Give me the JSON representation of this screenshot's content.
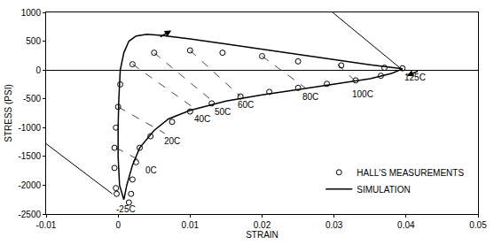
{
  "chart_data": {
    "type": "scatter",
    "xlabel": "STRAIN",
    "ylabel": "STRESS (PSI)",
    "xlim": [
      -0.01,
      0.05
    ],
    "xticks": [
      -0.01,
      0,
      0.01,
      0.02,
      0.03,
      0.04,
      0.05
    ],
    "ylim": [
      -2500,
      1000
    ],
    "yticks": [
      -2500,
      -2000,
      -1500,
      -1000,
      -500,
      0,
      500,
      1000
    ],
    "grid": false,
    "legend": "lower right",
    "series": [
      {
        "name": "HALL'S MEASUREMENTS",
        "type": "scatter",
        "marker": "open circle",
        "color": "#000000",
        "x": [
          -0.0005,
          -0.0005,
          -0.0003,
          -0.0003,
          -0.0002,
          0,
          0.0003,
          0.002,
          0.005,
          0.01,
          0.0145,
          0.02,
          0.025,
          0.031,
          0.037,
          0.0395,
          0.0365,
          0.033,
          0.029,
          0.025,
          0.021,
          0.017,
          0.013,
          0.01,
          0.0075,
          0.0045,
          0.003,
          0.0025,
          0.002,
          0.0018,
          0.0015
        ],
        "y": [
          -1700,
          -1350,
          -1000,
          -2050,
          -2150,
          -640,
          -250,
          100,
          300,
          340,
          300,
          240,
          150,
          80,
          40,
          30,
          -100,
          -180,
          -240,
          -310,
          -380,
          -460,
          -580,
          -720,
          -900,
          -1150,
          -1350,
          -1600,
          -1900,
          -2150,
          -2300
        ]
      },
      {
        "name": "SIMULATION",
        "type": "line",
        "line_style": "solid",
        "color": "#000000",
        "x": [
          0.0008,
          0.0002,
          0,
          0,
          0.0001,
          0.0003,
          0.0008,
          0.0015,
          0.0025,
          0.004,
          0.006,
          0.01,
          0.015,
          0.02,
          0.025,
          0.03,
          0.035,
          0.0395,
          0.038,
          0.035,
          0.03,
          0.025,
          0.02,
          0.015,
          0.01,
          0.007,
          0.005,
          0.003,
          0.002,
          0.0012,
          0.0008
        ],
        "y": [
          -2250,
          -2000,
          -1500,
          -1000,
          -500,
          0,
          300,
          500,
          590,
          620,
          600,
          540,
          450,
          360,
          260,
          170,
          90,
          20,
          -60,
          -150,
          -250,
          -340,
          -430,
          -540,
          -700,
          -850,
          -1050,
          -1350,
          -1650,
          -2000,
          -2250
        ]
      }
    ],
    "isotherms": [
      {
        "label": "125C",
        "x": [
          0.0395
        ],
        "y": [
          20
        ]
      },
      {
        "label": "100C",
        "x": [
          0.0305,
          0.033
        ],
        "y": [
          100,
          -200
        ]
      },
      {
        "label": "80C",
        "x": [
          0.02,
          0.026
        ],
        "y": [
          240,
          -310
        ]
      },
      {
        "label": "60C",
        "x": [
          0.01,
          0.017
        ],
        "y": [
          340,
          -460
        ]
      },
      {
        "label": "50C",
        "x": [
          0.005,
          0.0135
        ],
        "y": [
          300,
          -580
        ]
      },
      {
        "label": "40C",
        "x": [
          0.002,
          0.011
        ],
        "y": [
          100,
          -700
        ]
      },
      {
        "label": "20C",
        "x": [
          0,
          0.0065
        ],
        "y": [
          -640,
          -1100
        ]
      },
      {
        "label": "0C",
        "x": [
          -0.0003,
          0.0035
        ],
        "y": [
          -1350,
          -1600
        ]
      },
      {
        "label": "-25C",
        "x": [
          -0.0002
        ],
        "y": [
          -2200
        ]
      }
    ],
    "elastic_lines": [
      {
        "x": [
          0.0298,
          0.0395
        ],
        "y": [
          1000,
          0
        ]
      },
      {
        "x": [
          -0.01,
          -0.0008
        ],
        "y": [
          -1280,
          -2150
        ]
      }
    ]
  }
}
